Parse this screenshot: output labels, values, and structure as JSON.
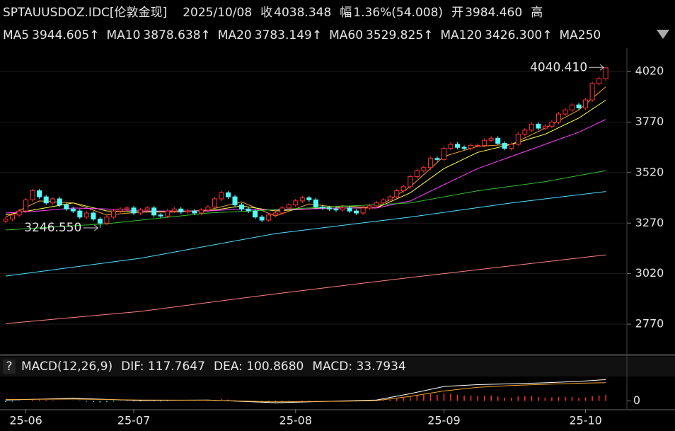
{
  "header": {
    "symbol": "SPTAUUSDOZ.IDC[伦敦金现]",
    "date": "2025/10/08",
    "close_label": "收",
    "close": "4038.348",
    "change_label": "幅",
    "change": "1.36%(54.008)",
    "open_label": "开",
    "open": "3984.460",
    "high_label": "高"
  },
  "chart_data": [
    {
      "type": "candlestick",
      "up_color": "#ff3232",
      "down_color": "#54ffff",
      "categories": [
        null,
        null,
        null,
        "25-06",
        null,
        null,
        null,
        null,
        null,
        null,
        null,
        null,
        null,
        null,
        null,
        null,
        null,
        null,
        null,
        "25-07",
        null,
        null,
        null,
        null,
        null,
        null,
        null,
        null,
        null,
        null,
        null,
        null,
        null,
        null,
        null,
        null,
        null,
        null,
        null,
        null,
        null,
        null,
        null,
        "25-08",
        null,
        null,
        null,
        null,
        null,
        null,
        null,
        null,
        null,
        null,
        null,
        null,
        null,
        null,
        null,
        null,
        null,
        null,
        null,
        null,
        null,
        "25-09",
        null,
        null,
        null,
        null,
        null,
        null,
        null,
        null,
        null,
        null,
        null,
        null,
        null,
        null,
        null,
        null,
        null,
        null,
        null,
        null,
        "25-10",
        null,
        null,
        null
      ],
      "open": [
        3280,
        3290,
        3310,
        3330,
        3385,
        3430,
        3400,
        3370,
        3390,
        3360,
        3340,
        3330,
        3300,
        3320,
        3290,
        3270,
        3300,
        3330,
        3340,
        3345,
        3320,
        3335,
        3345,
        3310,
        3305,
        3330,
        3340,
        3325,
        3330,
        3320,
        3335,
        3350,
        3390,
        3420,
        3400,
        3360,
        3340,
        3330,
        3300,
        3285,
        3310,
        3320,
        3345,
        3360,
        3380,
        3395,
        3385,
        3350,
        3345,
        3340,
        3335,
        3345,
        3330,
        3320,
        3345,
        3355,
        3370,
        3385,
        3400,
        3430,
        3450,
        3500,
        3530,
        3545,
        3590,
        3585,
        3640,
        3660,
        3645,
        3640,
        3655,
        3655,
        3680,
        3690,
        3665,
        3640,
        3660,
        3710,
        3730,
        3760,
        3740,
        3750,
        3770,
        3810,
        3830,
        3855,
        3840,
        3880,
        3960,
        3984.46
      ],
      "high": [
        3300,
        3320,
        3340,
        3395,
        3440,
        3440,
        3410,
        3400,
        3400,
        3370,
        3350,
        3340,
        3330,
        3330,
        3300,
        3310,
        3340,
        3350,
        3355,
        3355,
        3345,
        3355,
        3355,
        3320,
        3340,
        3350,
        3350,
        3340,
        3340,
        3345,
        3360,
        3400,
        3430,
        3430,
        3410,
        3370,
        3350,
        3340,
        3310,
        3320,
        3330,
        3355,
        3370,
        3390,
        3405,
        3405,
        3395,
        3360,
        3355,
        3350,
        3355,
        3355,
        3340,
        3355,
        3365,
        3380,
        3395,
        3410,
        3440,
        3460,
        3510,
        3540,
        3555,
        3600,
        3600,
        3650,
        3670,
        3670,
        3655,
        3665,
        3665,
        3690,
        3700,
        3700,
        3675,
        3670,
        3720,
        3740,
        3770,
        3770,
        3760,
        3780,
        3820,
        3840,
        3865,
        3865,
        3890,
        3970,
        3995,
        4040.41
      ],
      "low": [
        3270,
        3280,
        3300,
        3320,
        3375,
        3390,
        3360,
        3360,
        3350,
        3330,
        3320,
        3290,
        3290,
        3280,
        3246.55,
        3260,
        3290,
        3320,
        3330,
        3310,
        3310,
        3325,
        3300,
        3295,
        3295,
        3320,
        3315,
        3315,
        3310,
        3310,
        3325,
        3340,
        3380,
        3390,
        3350,
        3330,
        3320,
        3290,
        3275,
        3275,
        3300,
        3310,
        3335,
        3350,
        3370,
        3375,
        3340,
        3335,
        3330,
        3325,
        3325,
        3320,
        3310,
        3310,
        3335,
        3345,
        3360,
        3375,
        3390,
        3420,
        3440,
        3490,
        3520,
        3535,
        3575,
        3575,
        3630,
        3635,
        3630,
        3630,
        3645,
        3645,
        3670,
        3655,
        3630,
        3630,
        3650,
        3700,
        3720,
        3730,
        3730,
        3740,
        3760,
        3800,
        3820,
        3830,
        3830,
        3870,
        3950,
        3975
      ],
      "close": [
        3290,
        3310,
        3330,
        3385,
        3430,
        3400,
        3370,
        3390,
        3360,
        3340,
        3330,
        3300,
        3320,
        3290,
        3270,
        3300,
        3330,
        3340,
        3345,
        3320,
        3335,
        3345,
        3310,
        3305,
        3330,
        3340,
        3325,
        3330,
        3320,
        3335,
        3350,
        3390,
        3420,
        3400,
        3360,
        3340,
        3330,
        3300,
        3285,
        3310,
        3320,
        3345,
        3360,
        3380,
        3395,
        3385,
        3350,
        3345,
        3340,
        3335,
        3345,
        3330,
        3320,
        3345,
        3355,
        3370,
        3385,
        3400,
        3430,
        3450,
        3500,
        3530,
        3545,
        3590,
        3585,
        3640,
        3660,
        3645,
        3640,
        3655,
        3655,
        3680,
        3690,
        3665,
        3640,
        3660,
        3710,
        3730,
        3760,
        3740,
        3750,
        3770,
        3810,
        3830,
        3855,
        3840,
        3880,
        3960,
        3985,
        4038.348
      ],
      "high_label": "4040.410",
      "low_label": "3246.550",
      "label_color_high": "#ff3232",
      "label_color_low": "#30c030",
      "series": [
        {
          "name": "MA5",
          "label": "3944.605↑",
          "color": "#f0a030",
          "x": [
            0,
            5,
            10,
            15,
            20,
            25,
            30,
            35,
            40,
            45,
            50,
            55,
            60,
            65,
            70,
            75,
            80,
            85,
            89
          ],
          "values": [
            3300,
            3380,
            3370,
            3310,
            3325,
            3325,
            3335,
            3375,
            3305,
            3365,
            3345,
            3345,
            3450,
            3600,
            3650,
            3660,
            3740,
            3830,
            3944.605
          ]
        },
        {
          "name": "MA10",
          "label": "3878.638↑",
          "color": "#ffff50",
          "x": [
            0,
            5,
            10,
            15,
            20,
            25,
            30,
            35,
            40,
            45,
            50,
            55,
            60,
            65,
            70,
            75,
            80,
            85,
            89
          ],
          "values": [
            3310,
            3340,
            3370,
            3330,
            3325,
            3330,
            3330,
            3355,
            3330,
            3340,
            3355,
            3345,
            3420,
            3540,
            3620,
            3660,
            3710,
            3790,
            3878.638
          ]
        },
        {
          "name": "MA20",
          "label": "3783.149↑",
          "color": "#ff40ff",
          "x": [
            0,
            5,
            10,
            15,
            20,
            25,
            30,
            35,
            40,
            45,
            50,
            55,
            60,
            65,
            70,
            75,
            80,
            85,
            89
          ],
          "values": [
            3320,
            3330,
            3345,
            3340,
            3330,
            3330,
            3330,
            3340,
            3335,
            3340,
            3345,
            3345,
            3380,
            3460,
            3540,
            3600,
            3660,
            3720,
            3783.149
          ]
        },
        {
          "name": "MA60",
          "label": "3529.825↑",
          "color": "#30c030",
          "x": [
            0,
            15,
            30,
            45,
            60,
            70,
            80,
            89
          ],
          "values": [
            3236,
            3267,
            3320,
            3345,
            3370,
            3430,
            3475,
            3529.825
          ]
        },
        {
          "name": "MA120",
          "label": "3426.300↑",
          "color": "#50e0ff",
          "x": [
            0,
            20,
            40,
            60,
            75,
            89
          ],
          "values": [
            3008,
            3096,
            3218,
            3300,
            3370,
            3426.3
          ]
        },
        {
          "name": "MA250",
          "color": "#ff8080",
          "x": [
            0,
            20,
            40,
            60,
            89
          ],
          "values": [
            2773,
            2833,
            2920,
            3001,
            3113
          ]
        }
      ],
      "ylim": [
        2623,
        4136
      ],
      "yticks": [
        2770,
        3020,
        3270,
        3520,
        3770,
        4020
      ],
      "grid": true
    },
    {
      "type": "macd",
      "title": "MACD(12,26,9)",
      "help": "?",
      "series": [
        {
          "name": "DIF",
          "label": "DIF: 117.7647",
          "color": "#ffffff",
          "x": [
            0,
            10,
            20,
            30,
            40,
            50,
            55,
            60,
            65,
            70,
            75,
            80,
            85,
            89
          ],
          "values": [
            5,
            15,
            2,
            5,
            -10,
            0,
            5,
            40,
            80,
            90,
            95,
            100,
            108,
            117.7647
          ]
        },
        {
          "name": "DEA",
          "label": "DEA: 100.8680",
          "color": "#f0a030",
          "x": [
            0,
            10,
            20,
            30,
            40,
            50,
            55,
            60,
            65,
            70,
            75,
            80,
            85,
            89
          ],
          "values": [
            8,
            10,
            5,
            4,
            -5,
            -2,
            2,
            25,
            55,
            75,
            85,
            92,
            98,
            100.868
          ]
        }
      ],
      "macd_label": "MACD: 33.7934",
      "macd_label_color": "#54ffff",
      "values": [
        -6,
        -4,
        -2,
        2,
        6,
        8,
        6,
        4,
        2,
        0,
        2,
        -2,
        -4,
        -6,
        -8,
        -6,
        -4,
        -2,
        -2,
        -3,
        -2,
        0,
        -2,
        -3,
        -2,
        0,
        1,
        0,
        -1,
        0,
        2,
        6,
        10,
        8,
        4,
        0,
        -3,
        -6,
        -8,
        -7,
        -6,
        -4,
        -2,
        0,
        3,
        4,
        2,
        0,
        -1,
        -2,
        -1,
        -2,
        -3,
        -1,
        1,
        3,
        5,
        8,
        12,
        16,
        24,
        30,
        34,
        38,
        34,
        40,
        40,
        34,
        30,
        30,
        28,
        30,
        30,
        24,
        18,
        18,
        24,
        26,
        28,
        22,
        18,
        20,
        22,
        22,
        22,
        18,
        20,
        26,
        30,
        33.7934
      ],
      "up_color": "#ff3232",
      "down_color": "#54ffff",
      "ylim": [
        -45,
        135
      ],
      "yticks": [
        0
      ]
    }
  ]
}
